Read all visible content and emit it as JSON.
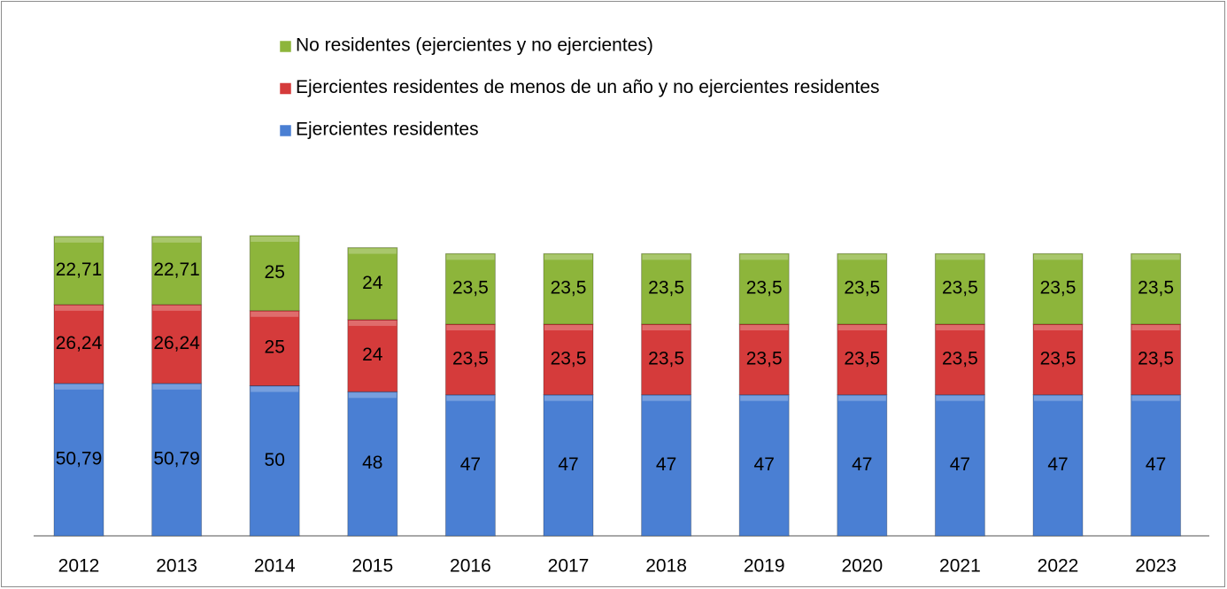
{
  "chart_data": {
    "type": "stacked_bar",
    "categories": [
      "2012",
      "2013",
      "2014",
      "2015",
      "2016",
      "2017",
      "2018",
      "2019",
      "2020",
      "2021",
      "2022",
      "2023"
    ],
    "series": [
      {
        "name": "Ejercientes residentes",
        "color": "#4a7fd3",
        "values": [
          50.79,
          50.79,
          50,
          48,
          47,
          47,
          47,
          47,
          47,
          47,
          47,
          47
        ],
        "value_labels": [
          "50,79",
          "50,79",
          "50",
          "48",
          "47",
          "47",
          "47",
          "47",
          "47",
          "47",
          "47",
          "47"
        ]
      },
      {
        "name": "Ejercientes residentes de menos de un año y no ejercientes residentes",
        "color": "#d53b3b",
        "values": [
          26.24,
          26.24,
          25,
          24,
          23.5,
          23.5,
          23.5,
          23.5,
          23.5,
          23.5,
          23.5,
          23.5
        ],
        "value_labels": [
          "26,24",
          "26,24",
          "25",
          "24",
          "23,5",
          "23,5",
          "23,5",
          "23,5",
          "23,5",
          "23,5",
          "23,5",
          "23,5"
        ]
      },
      {
        "name": "No residentes (ejercientes y no ejercientes)",
        "color": "#8db53b",
        "values": [
          22.71,
          22.71,
          25,
          24,
          23.5,
          23.5,
          23.5,
          23.5,
          23.5,
          23.5,
          23.5,
          23.5
        ],
        "value_labels": [
          "22,71",
          "22,71",
          "25",
          "24",
          "23,5",
          "23,5",
          "23,5",
          "23,5",
          "23,5",
          "23,5",
          "23,5",
          "23,5"
        ]
      }
    ]
  }
}
